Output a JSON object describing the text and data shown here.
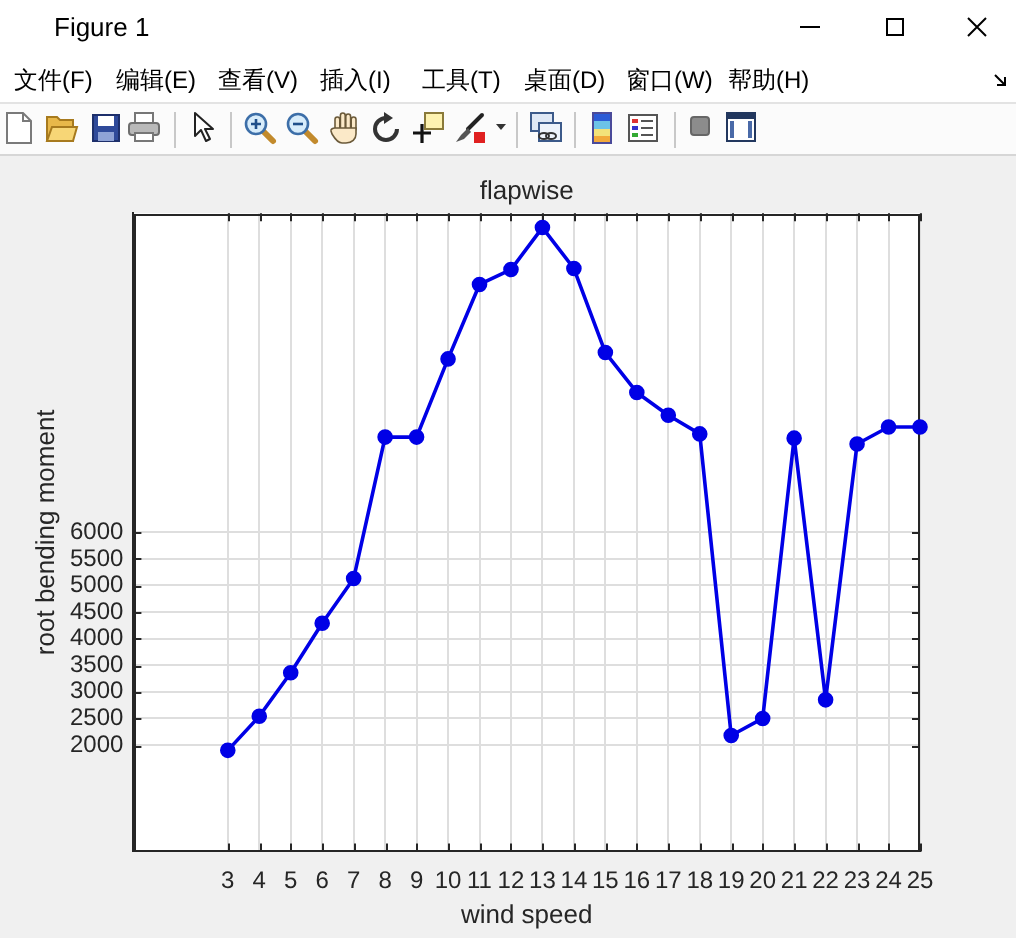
{
  "chart_data": {
    "type": "line",
    "title": "flapwise",
    "xlabel": "wind speed",
    "ylabel": "root bending moment",
    "x": [
      3,
      4,
      5,
      6,
      7,
      8,
      9,
      10,
      11,
      12,
      13,
      14,
      15,
      16,
      17,
      18,
      19,
      20,
      21,
      22,
      23,
      24,
      25
    ],
    "values": [
      1900,
      2540,
      3360,
      4290,
      5130,
      7790,
      7790,
      9260,
      10660,
      10940,
      11730,
      10960,
      9380,
      8630,
      8200,
      7850,
      2180,
      2500,
      7770,
      2850,
      7660,
      7980,
      7980
    ],
    "color": "#0000e6",
    "xlim": [
      0,
      25
    ],
    "ylim": [
      0,
      12000
    ],
    "xticks": [
      3,
      4,
      5,
      6,
      7,
      8,
      9,
      10,
      11,
      12,
      13,
      14,
      15,
      16,
      17,
      18,
      19,
      20,
      21,
      22,
      23,
      24,
      25
    ],
    "yticks": [
      2000,
      2500,
      3000,
      3500,
      4000,
      4500,
      5000,
      5500,
      6000
    ],
    "grid": true,
    "marker": "circle",
    "line_style": "solid",
    "annotations": [
      "Figure 1",
      "文件(F)",
      "编辑(E)",
      "查看(V)",
      "插入(I)",
      "工具(T)",
      "桌面(D)",
      "窗口(W)",
      "帮助(H)"
    ]
  }
}
